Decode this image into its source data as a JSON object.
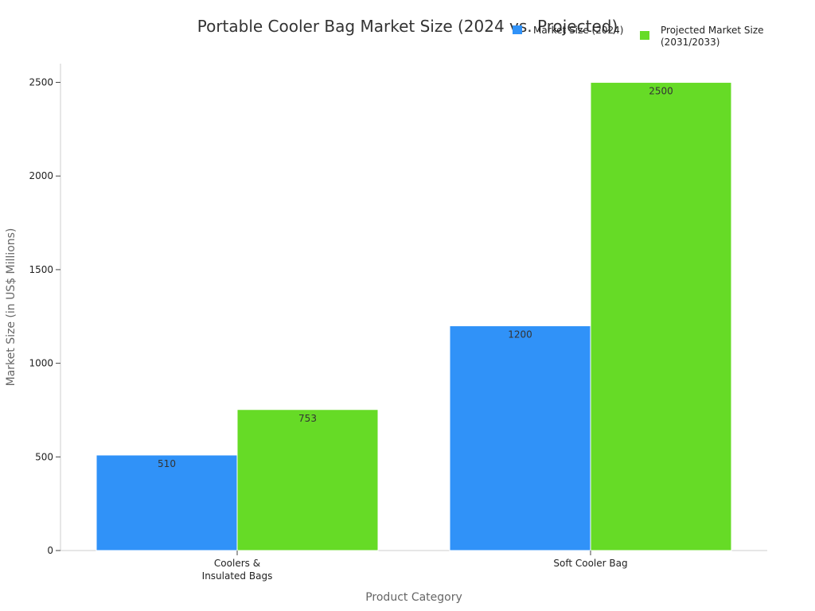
{
  "chart_data": {
    "type": "bar",
    "title": "Portable Cooler Bag Market Size (2024 vs. Projected)",
    "xlabel": "Product Category",
    "ylabel": "Market Size (in US$ Millions)",
    "categories": [
      [
        "Coolers &",
        "Insulated Bags"
      ],
      [
        "Soft Cooler Bag"
      ]
    ],
    "series": [
      {
        "name": "Market Size (2024)",
        "color": "#3092f8",
        "values": [
          510,
          1200
        ]
      },
      {
        "name": [
          "Projected Market Size",
          "(2031/2033)"
        ],
        "color": "#66db26",
        "values": [
          753,
          2500
        ]
      }
    ],
    "ylim": [
      0,
      2600
    ],
    "yticks": [
      0,
      500,
      1000,
      1500,
      2000,
      2500
    ],
    "grid": false,
    "legend_position": "top-right"
  }
}
